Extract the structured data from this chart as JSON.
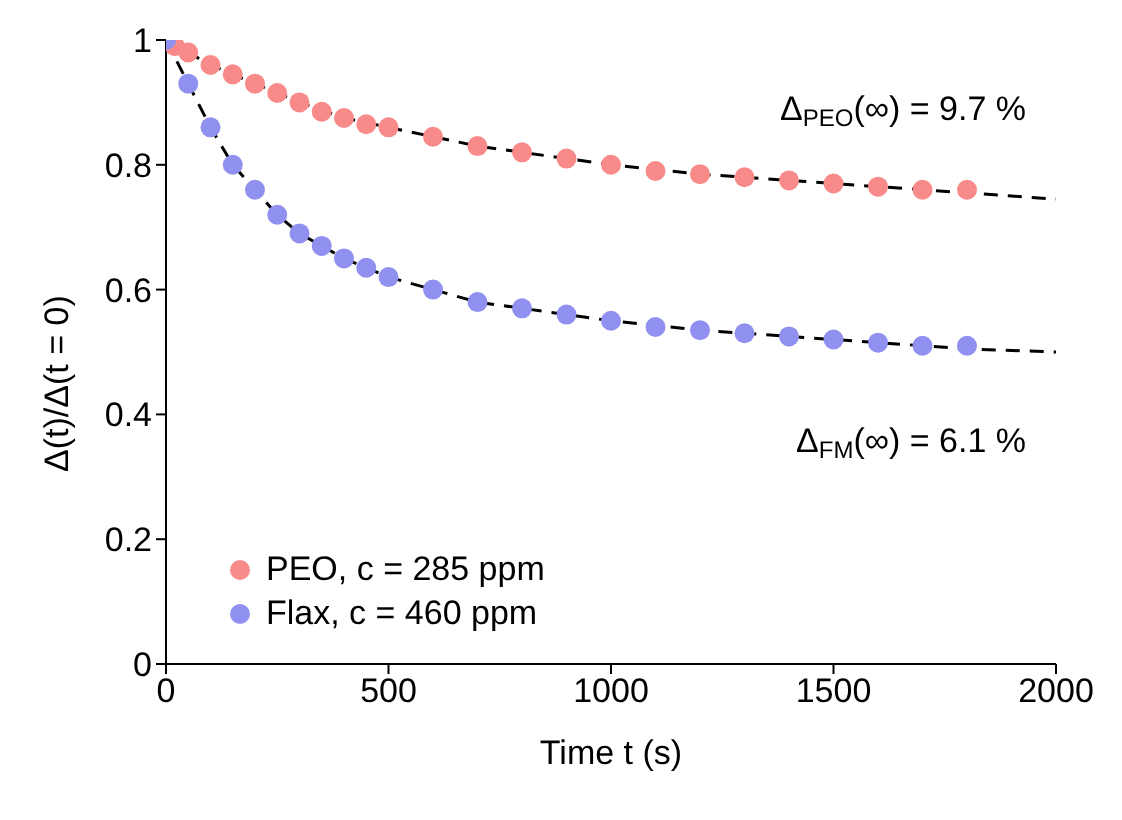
{
  "chart_data": {
    "type": "scatter",
    "xlabel": "Time t (s)",
    "ylabel": "Δ(t)/Δ(t = 0)",
    "xlim": [
      0,
      2000
    ],
    "xticks": [
      0,
      500,
      1000,
      1500,
      2000
    ],
    "ylim": [
      0,
      1
    ],
    "yticks": [
      0,
      0.2,
      0.4,
      0.6,
      0.8,
      1
    ],
    "grid": false,
    "legend": "bottom left",
    "marker": "circle",
    "annotations": [
      "Δ$_{PEO}$(∞) = 9.7 %",
      "Δ$_{FM}$(∞) = 6.1 %"
    ],
    "series": [
      {
        "name": "PEO, c = 285 ppm",
        "color": "#f88a8a",
        "x": [
          20,
          50,
          100,
          150,
          200,
          250,
          300,
          350,
          400,
          450,
          500,
          600,
          700,
          800,
          900,
          1000,
          1100,
          1200,
          1300,
          1400,
          1500,
          1600,
          1700,
          1800
        ],
        "values": [
          0.99,
          0.98,
          0.96,
          0.945,
          0.93,
          0.915,
          0.9,
          0.885,
          0.875,
          0.865,
          0.86,
          0.845,
          0.83,
          0.82,
          0.81,
          0.8,
          0.79,
          0.785,
          0.78,
          0.775,
          0.77,
          0.765,
          0.76,
          0.76
        ]
      },
      {
        "name": "Flax, c = 460 ppm",
        "color": "#9090f0",
        "x": [
          0,
          50,
          100,
          150,
          200,
          250,
          300,
          350,
          400,
          450,
          500,
          600,
          700,
          800,
          900,
          1000,
          1100,
          1200,
          1300,
          1400,
          1500,
          1600,
          1700,
          1800
        ],
        "values": [
          1,
          0.93,
          0.86,
          0.8,
          0.76,
          0.72,
          0.69,
          0.67,
          0.65,
          0.635,
          0.62,
          0.6,
          0.58,
          0.57,
          0.56,
          0.55,
          0.54,
          0.535,
          0.53,
          0.525,
          0.52,
          0.515,
          0.51,
          0.51
        ]
      },
      {
        "type": "line",
        "color": "#000000",
        "line_style": "dashed",
        "marker": "none",
        "x": [
          0,
          100,
          200,
          300,
          400,
          500,
          600,
          700,
          800,
          1000,
          1200,
          1400,
          1600,
          1800,
          2000
        ],
        "values": [
          1,
          0.96,
          0.93,
          0.9,
          0.875,
          0.86,
          0.845,
          0.83,
          0.82,
          0.8,
          0.785,
          0.775,
          0.765,
          0.755,
          0.745
        ]
      },
      {
        "type": "line",
        "color": "#000000",
        "line_style": "dashed",
        "marker": "none",
        "x": [
          0,
          50,
          100,
          150,
          200,
          250,
          300,
          400,
          500,
          600,
          700,
          800,
          1000,
          1200,
          1400,
          1600,
          1800,
          2000
        ],
        "values": [
          1,
          0.93,
          0.86,
          0.8,
          0.76,
          0.72,
          0.69,
          0.65,
          0.62,
          0.6,
          0.58,
          0.57,
          0.55,
          0.535,
          0.525,
          0.515,
          0.505,
          0.5
        ]
      }
    ]
  }
}
